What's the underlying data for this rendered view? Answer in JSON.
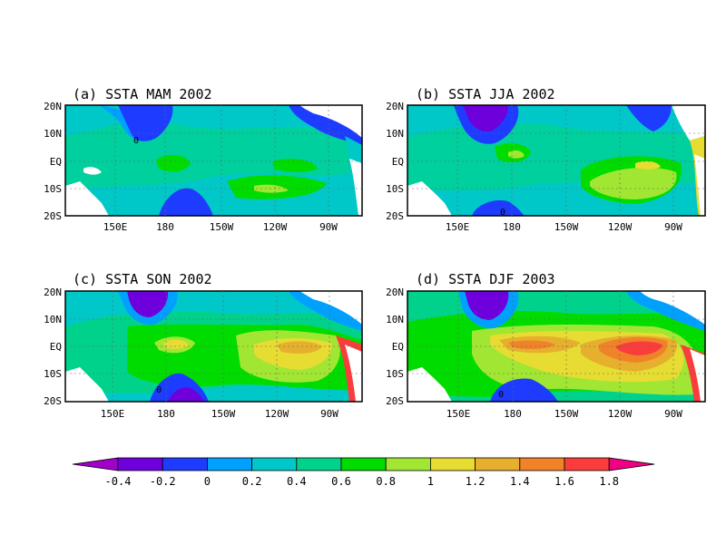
{
  "panels": [
    {
      "id": "a",
      "title": "(a) SSTA MAM 2002",
      "xticks": [
        "150E",
        "180",
        "150W",
        "120W",
        "90W"
      ]
    },
    {
      "id": "b",
      "title": "(b) SSTA JJA 2002",
      "xticks": [
        "150E",
        "180",
        "150W",
        "120W",
        "90W"
      ]
    },
    {
      "id": "c",
      "title": "(c) SSTA SON 2002",
      "xticks": [
        "150E",
        "180",
        "150W",
        "120W",
        "90W"
      ]
    },
    {
      "id": "d",
      "title": "(d) SSTA DJF 2003",
      "xticks": [
        "150E",
        "180",
        "150W",
        "120W",
        "90W"
      ]
    }
  ],
  "yticks": [
    "20N",
    "10N",
    "EQ",
    "10S",
    "20S"
  ],
  "contour_label": "0",
  "colorbar": {
    "labels": [
      "-0.4",
      "-0.2",
      "0",
      "0.2",
      "0.4",
      "0.6",
      "0.8",
      "1",
      "1.2",
      "1.4",
      "1.6",
      "1.8"
    ],
    "colors": [
      "#a000c8",
      "#6e00dc",
      "#1e3cff",
      "#00a0ff",
      "#00c8c8",
      "#00d28c",
      "#00dc00",
      "#a0e632",
      "#e6dc32",
      "#e6af2d",
      "#f08228",
      "#fa3c3c",
      "#f00082"
    ]
  }
}
